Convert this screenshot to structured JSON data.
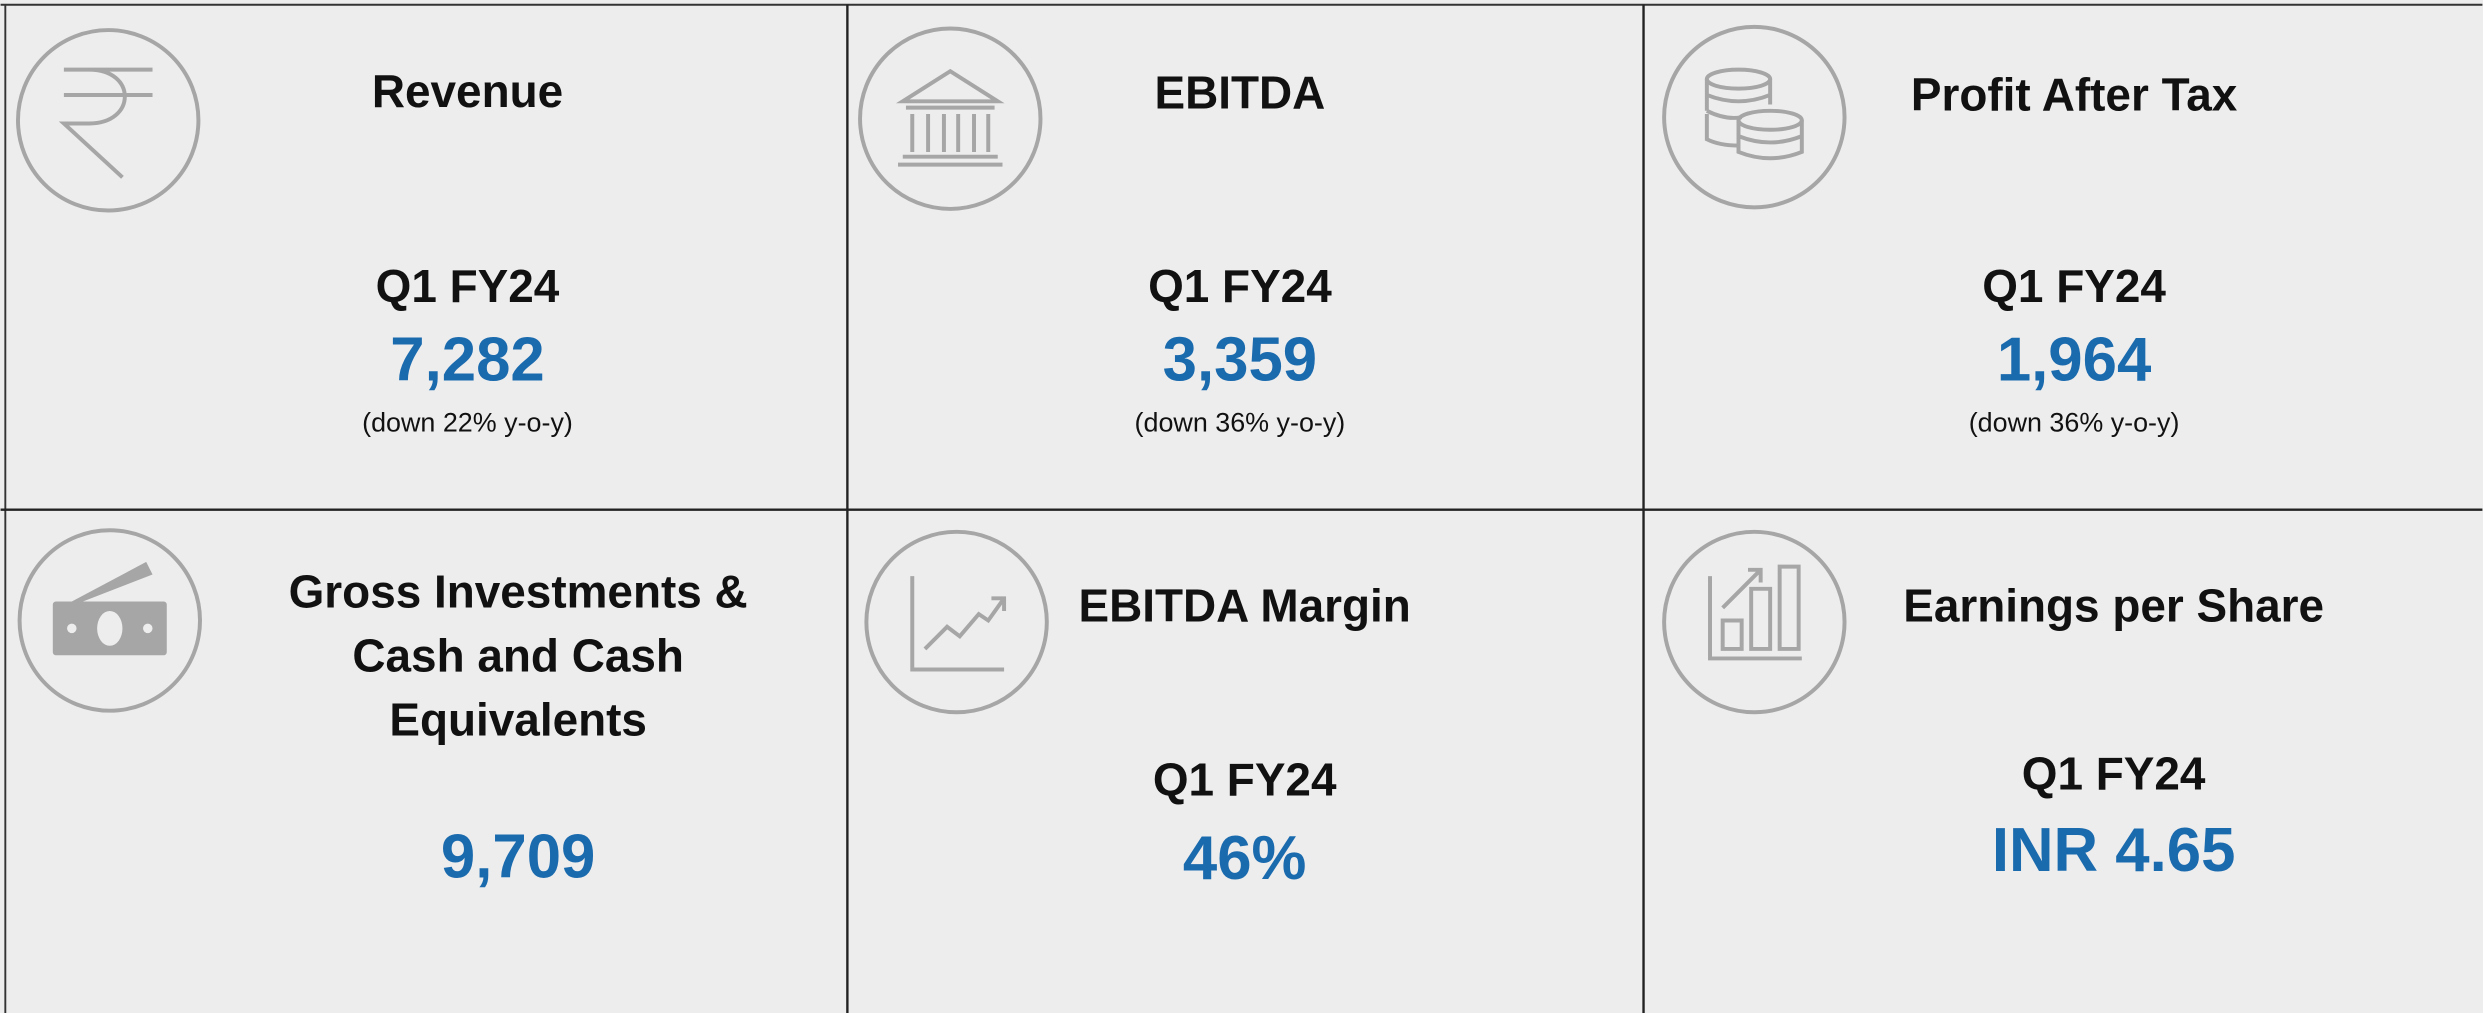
{
  "cards": [
    {
      "title_lines": [
        "Revenue"
      ],
      "period": "Q1 FY24",
      "value": "7,282",
      "note": "(down 22% y-o-y)"
    },
    {
      "title_lines": [
        "EBITDA"
      ],
      "period": "Q1 FY24",
      "value": "3,359",
      "note": "(down 36% y-o-y)"
    },
    {
      "title_lines": [
        "Profit After Tax"
      ],
      "period": "Q1 FY24",
      "value": "1,964",
      "note": "(down 36% y-o-y)"
    },
    {
      "title_lines": [
        "Gross Investments &",
        "Cash and Cash",
        "Equivalents"
      ],
      "value": "9,709"
    },
    {
      "title_lines": [
        "EBITDA Margin"
      ],
      "period": "Q1 FY24",
      "value": "46%"
    },
    {
      "title_lines": [
        "Earnings per Share"
      ],
      "period": "Q1 FY24",
      "value": "INR 4.65"
    }
  ]
}
